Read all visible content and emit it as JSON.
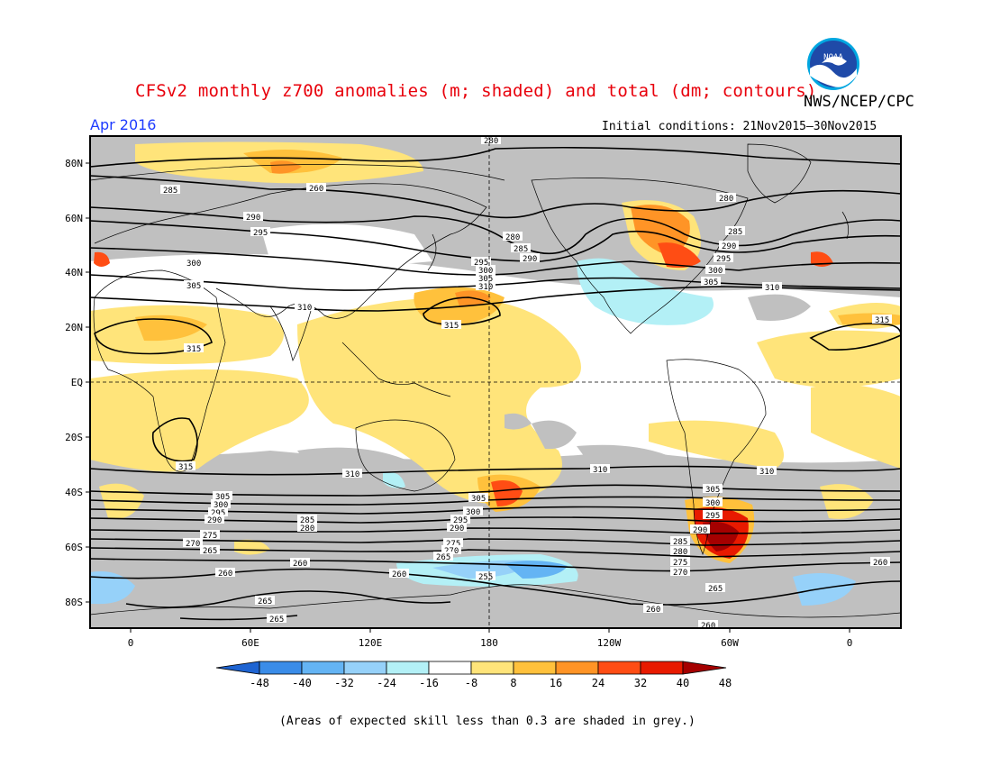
{
  "header": {
    "title": "CFSv2 monthly z700 anomalies (m; shaded) and total (dm; contours)",
    "agency": "NWS/NCEP/CPC",
    "month": "Apr 2016",
    "initial_conditions": "Initial conditions: 21Nov2015–30Nov2015"
  },
  "logo": {
    "text": "NOAA",
    "color": "#1565c0"
  },
  "map": {
    "lat_labels": [
      "80N",
      "60N",
      "40N",
      "20N",
      "EQ",
      "20S",
      "40S",
      "60S",
      "80S"
    ],
    "lon_labels": [
      "0",
      "60E",
      "120E",
      "180",
      "120W",
      "60W",
      "0"
    ],
    "contour_levels": [
      {
        "label": "260",
        "y_lat": -62
      },
      {
        "label": "265",
        "y_lat": -64
      },
      {
        "label": "270",
        "y_lat": -59
      },
      {
        "label": "275",
        "y_lat": -56
      },
      {
        "label": "280",
        "y_lat": -53
      },
      {
        "label": "285",
        "y_lat": -50
      },
      {
        "label": "290",
        "y_lat": -47
      },
      {
        "label": "295",
        "y_lat": -44
      },
      {
        "label": "300",
        "y_lat": -41
      },
      {
        "label": "305",
        "y_lat": -38
      },
      {
        "label": "310",
        "y_lat": -32
      }
    ],
    "colors": {
      "skill_grey": "#c0c0c0",
      "pos8": "#ffe47a",
      "pos16": "#ffc13c",
      "pos24": "#ff9426",
      "pos32": "#ff4d14",
      "pos40": "#e81a00",
      "pos48": "#a50000",
      "neg8": "#ffffff",
      "neg16": "#b3f0f6",
      "neg24": "#96d1f9",
      "neg32": "#64b4f4",
      "neg40": "#3a8ce8",
      "neg48": "#1e64d2",
      "coast": "#000000"
    }
  },
  "colorbar": {
    "labels": [
      "-48",
      "-40",
      "-32",
      "-24",
      "-16",
      "-8",
      "8",
      "16",
      "24",
      "32",
      "40",
      "48"
    ],
    "colors": [
      "#1e64d2",
      "#3a8ce8",
      "#64b4f4",
      "#96d1f9",
      "#b3f0f6",
      "#ffffff",
      "#ffe47a",
      "#ffc13c",
      "#ff9426",
      "#ff4d14",
      "#e81a00",
      "#a50000"
    ]
  },
  "footnote": "(Areas of expected skill less than 0.3 are shaded in grey.)"
}
